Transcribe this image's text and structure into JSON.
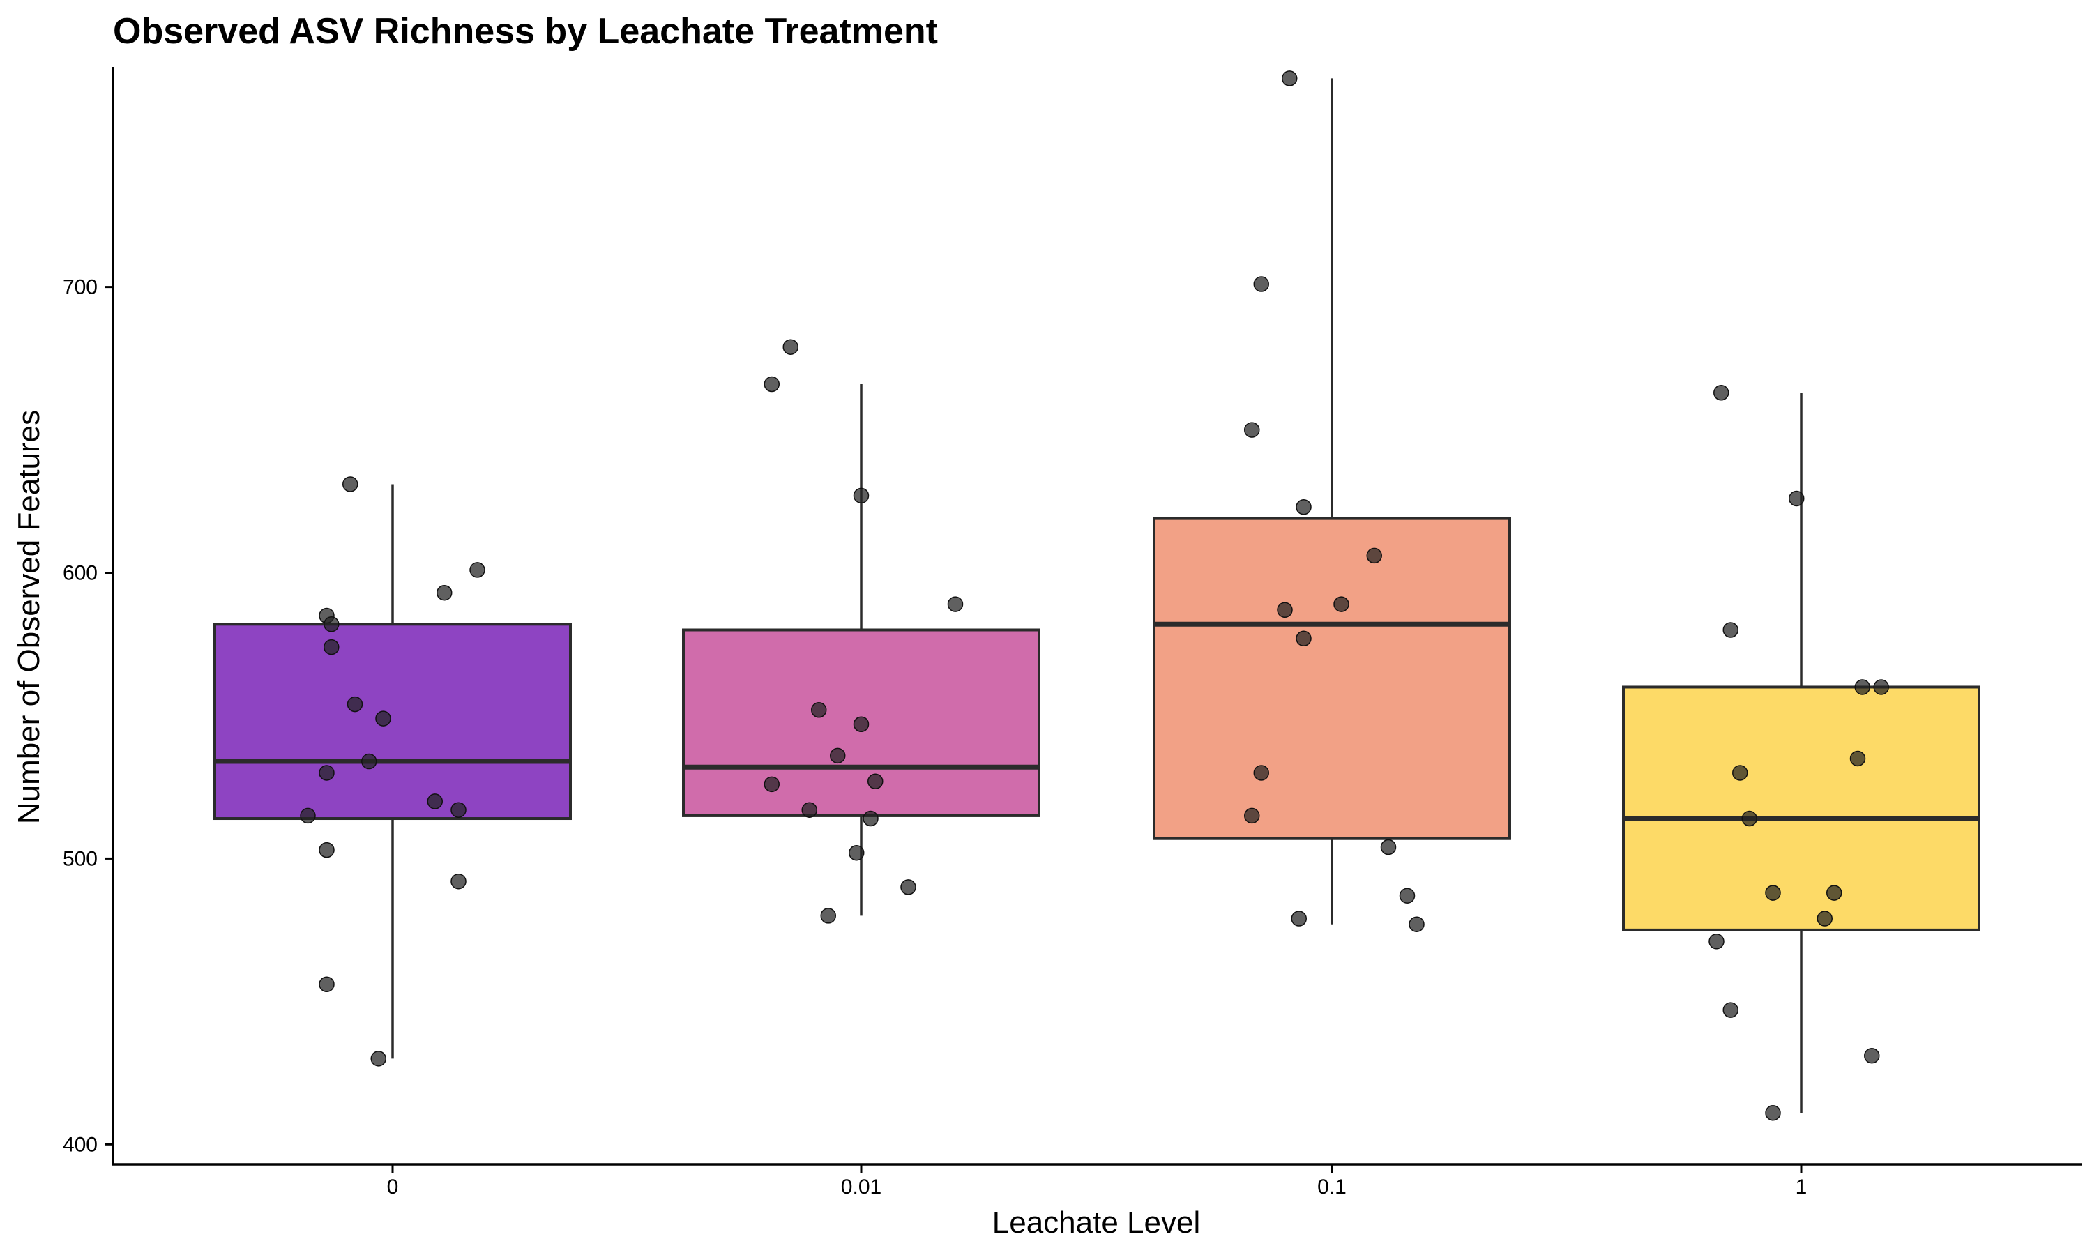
{
  "chart_data": {
    "type": "box",
    "title": "Observed ASV Richness by Leachate Treatment",
    "xlabel": "Leachate Level",
    "ylabel": "Number of Observed Features",
    "ylim": [
      393,
      777
    ],
    "yticks": [
      400,
      500,
      600,
      700
    ],
    "categories": [
      "0",
      "0.01",
      "0.1",
      "1"
    ],
    "boxes": [
      {
        "category": "0",
        "color": "#8E44C2",
        "q1": 514,
        "median": 534,
        "q3": 582,
        "whisker_low": 430,
        "whisker_high": 631
      },
      {
        "category": "0.01",
        "color": "#D06CAB",
        "q1": 515,
        "median": 532,
        "q3": 580,
        "whisker_low": 480,
        "whisker_high": 666
      },
      {
        "category": "0.1",
        "color": "#F2A186",
        "q1": 507,
        "median": 582,
        "q3": 619,
        "whisker_low": 477,
        "whisker_high": 773
      },
      {
        "category": "1",
        "color": "#FDDA67",
        "q1": 475,
        "median": 514,
        "q3": 560,
        "whisker_low": 411,
        "whisker_high": 663
      }
    ],
    "points": [
      [
        {
          "jitter": -0.09,
          "y": 631
        },
        {
          "jitter": 0.18,
          "y": 601
        },
        {
          "jitter": 0.11,
          "y": 593
        },
        {
          "jitter": -0.14,
          "y": 585
        },
        {
          "jitter": -0.13,
          "y": 582
        },
        {
          "jitter": -0.13,
          "y": 574
        },
        {
          "jitter": -0.08,
          "y": 554
        },
        {
          "jitter": -0.02,
          "y": 549
        },
        {
          "jitter": -0.05,
          "y": 534
        },
        {
          "jitter": -0.14,
          "y": 530
        },
        {
          "jitter": 0.09,
          "y": 520
        },
        {
          "jitter": 0.14,
          "y": 517
        },
        {
          "jitter": -0.18,
          "y": 515
        },
        {
          "jitter": -0.14,
          "y": 503
        },
        {
          "jitter": 0.14,
          "y": 492
        },
        {
          "jitter": -0.14,
          "y": 456
        },
        {
          "jitter": -0.03,
          "y": 430
        }
      ],
      [
        {
          "jitter": -0.15,
          "y": 679
        },
        {
          "jitter": -0.19,
          "y": 666
        },
        {
          "jitter": 0.0,
          "y": 627
        },
        {
          "jitter": 0.2,
          "y": 589
        },
        {
          "jitter": -0.09,
          "y": 552
        },
        {
          "jitter": 0.0,
          "y": 547
        },
        {
          "jitter": -0.05,
          "y": 536
        },
        {
          "jitter": 0.03,
          "y": 527
        },
        {
          "jitter": -0.19,
          "y": 526
        },
        {
          "jitter": -0.11,
          "y": 517
        },
        {
          "jitter": 0.02,
          "y": 514
        },
        {
          "jitter": -0.01,
          "y": 502
        },
        {
          "jitter": 0.1,
          "y": 490
        },
        {
          "jitter": -0.07,
          "y": 480
        }
      ],
      [
        {
          "jitter": -0.09,
          "y": 773
        },
        {
          "jitter": -0.15,
          "y": 701
        },
        {
          "jitter": -0.17,
          "y": 650
        },
        {
          "jitter": -0.06,
          "y": 623
        },
        {
          "jitter": 0.09,
          "y": 606
        },
        {
          "jitter": 0.02,
          "y": 589
        },
        {
          "jitter": -0.1,
          "y": 587
        },
        {
          "jitter": -0.06,
          "y": 577
        },
        {
          "jitter": -0.15,
          "y": 530
        },
        {
          "jitter": -0.17,
          "y": 515
        },
        {
          "jitter": 0.12,
          "y": 504
        },
        {
          "jitter": 0.16,
          "y": 487
        },
        {
          "jitter": -0.07,
          "y": 479
        },
        {
          "jitter": 0.18,
          "y": 477
        }
      ],
      [
        {
          "jitter": -0.17,
          "y": 663
        },
        {
          "jitter": -0.01,
          "y": 626
        },
        {
          "jitter": -0.15,
          "y": 580
        },
        {
          "jitter": 0.13,
          "y": 560
        },
        {
          "jitter": 0.17,
          "y": 560
        },
        {
          "jitter": 0.12,
          "y": 535
        },
        {
          "jitter": -0.13,
          "y": 530
        },
        {
          "jitter": -0.11,
          "y": 514
        },
        {
          "jitter": -0.06,
          "y": 488
        },
        {
          "jitter": 0.07,
          "y": 488
        },
        {
          "jitter": 0.05,
          "y": 479
        },
        {
          "jitter": -0.18,
          "y": 471
        },
        {
          "jitter": -0.15,
          "y": 447
        },
        {
          "jitter": 0.15,
          "y": 431
        },
        {
          "jitter": -0.06,
          "y": 411
        }
      ]
    ]
  }
}
